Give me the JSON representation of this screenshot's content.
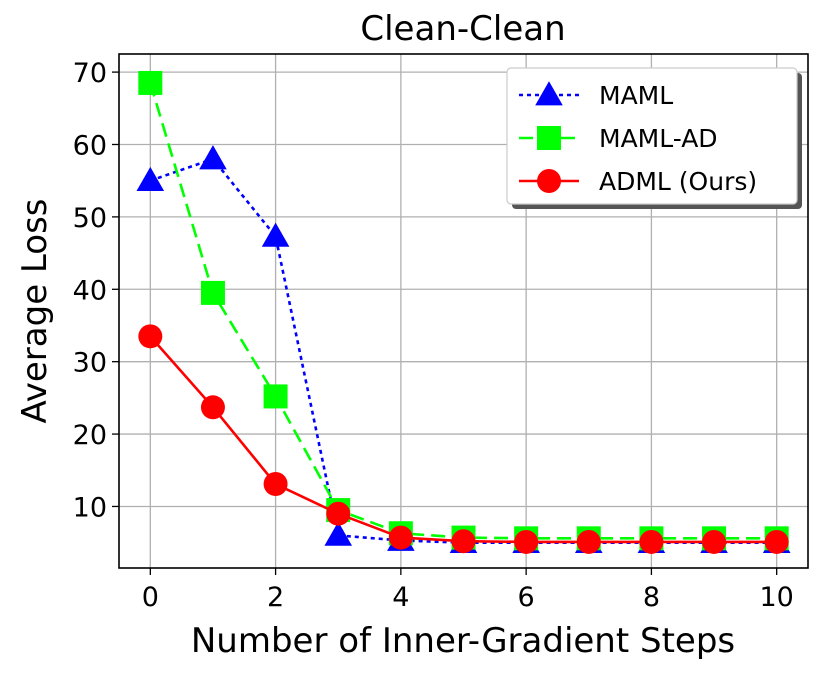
{
  "chart_data": {
    "type": "line",
    "title": "Clean-Clean",
    "xlabel": "Number of Inner-Gradient Steps",
    "ylabel": "Average Loss",
    "xlim": [
      -0.5,
      10.5
    ],
    "ylim": [
      1.5,
      72.5
    ],
    "xticks": [
      0,
      2,
      4,
      6,
      8,
      10
    ],
    "yticks": [
      10,
      20,
      30,
      40,
      50,
      60,
      70
    ],
    "xtick_labels": [
      "0",
      "2",
      "4",
      "6",
      "8",
      "10"
    ],
    "ytick_labels": [
      "10",
      "20",
      "30",
      "40",
      "50",
      "60",
      "70"
    ],
    "grid": true,
    "legend_position": "top-right",
    "x": [
      0,
      1,
      2,
      3,
      4,
      5,
      6,
      7,
      8,
      9,
      10
    ],
    "series": [
      {
        "name": "MAML",
        "color": "#0000ff",
        "marker": "triangle",
        "linestyle": "dotted",
        "values": [
          55.0,
          58.0,
          47.3,
          6.0,
          5.3,
          5.0,
          5.0,
          5.0,
          5.0,
          5.0,
          5.0
        ]
      },
      {
        "name": "MAML-AD",
        "color": "#00ff00",
        "marker": "square",
        "linestyle": "dashed",
        "values": [
          68.5,
          39.5,
          25.2,
          9.5,
          6.3,
          5.7,
          5.6,
          5.6,
          5.6,
          5.6,
          5.6
        ]
      },
      {
        "name": "ADML (Ours)",
        "color": "#ff0000",
        "marker": "circle",
        "linestyle": "solid",
        "values": [
          33.5,
          23.7,
          13.1,
          9.0,
          5.7,
          5.2,
          5.1,
          5.1,
          5.1,
          5.1,
          5.1
        ]
      }
    ]
  }
}
